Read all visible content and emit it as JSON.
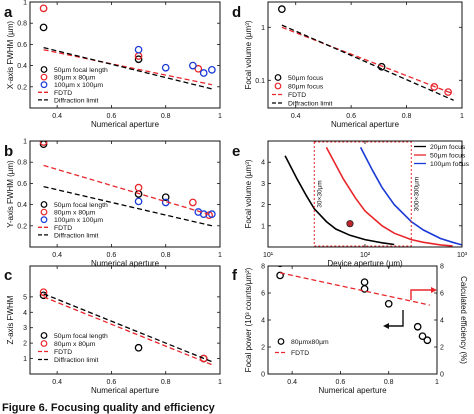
{
  "caption": "Figure 6. Focusing quality and efficiency",
  "chart_data": [
    {
      "panel": "a",
      "type": "scatter",
      "xlabel": "Numerical aperture",
      "ylabel": "X-axis FWHM (µm)",
      "xlim": [
        0.3,
        1.0
      ],
      "ylim": [
        0.0,
        1.0
      ],
      "yscale": "linear",
      "xticks": [
        0.4,
        0.6,
        0.8,
        1.0
      ],
      "xticklabels": [
        "0.4",
        "0.6",
        "0.8",
        "1"
      ],
      "yticks": [
        0.2,
        0.4,
        0.6,
        0.8,
        1.0
      ],
      "yticklabels": [
        "0.2",
        "0.4",
        "0.6",
        "0.8",
        "1"
      ],
      "legend_position": "bottom-left",
      "series": [
        {
          "name": "50µm focal length",
          "kind": "markers",
          "color": "#000000",
          "x": [
            0.35,
            0.7
          ],
          "y": [
            0.76,
            0.46
          ]
        },
        {
          "name": "80µm x 80µm",
          "kind": "markers",
          "color": "#e8262b",
          "x": [
            0.35,
            0.7,
            0.92
          ],
          "y": [
            0.94,
            0.49,
            0.37
          ]
        },
        {
          "name": "100µm x 100µm",
          "kind": "markers",
          "color": "#1a3ad6",
          "x": [
            0.7,
            0.8,
            0.9,
            0.94,
            0.97
          ],
          "y": [
            0.55,
            0.38,
            0.4,
            0.33,
            0.36
          ]
        },
        {
          "name": "FDTD",
          "kind": "dashed-line",
          "color": "#e8262b",
          "x": [
            0.35,
            0.97
          ],
          "y": [
            0.55,
            0.22
          ]
        },
        {
          "name": "Diffraction limit",
          "kind": "dashed-line",
          "color": "#000000",
          "x": [
            0.35,
            0.97
          ],
          "y": [
            0.57,
            0.18
          ]
        }
      ]
    },
    {
      "panel": "b",
      "type": "scatter",
      "xlabel": "Numerical aperture",
      "ylabel": "Y-axis FWHM (µm)",
      "xlim": [
        0.3,
        1.0
      ],
      "ylim": [
        0.0,
        1.0
      ],
      "yscale": "linear",
      "xticks": [
        0.4,
        0.6,
        0.8,
        1.0
      ],
      "xticklabels": [
        "0.4",
        "0.6",
        "0.8",
        "1"
      ],
      "yticks": [
        0.2,
        0.4,
        0.6,
        0.8,
        1.0
      ],
      "yticklabels": [
        "0.2",
        "0.4",
        "0.6",
        "0.8",
        "1"
      ],
      "legend_position": "bottom-left",
      "series": [
        {
          "name": "50µm focal length",
          "kind": "markers",
          "color": "#000000",
          "x": [
            0.35,
            0.7,
            0.8
          ],
          "y": [
            0.97,
            0.5,
            0.47
          ]
        },
        {
          "name": "80µm x 80µm",
          "kind": "markers",
          "color": "#e8262b",
          "x": [
            0.35,
            0.7,
            0.9,
            0.96
          ],
          "y": [
            0.99,
            0.56,
            0.42,
            0.3
          ]
        },
        {
          "name": "100µm x 100µm",
          "kind": "markers",
          "color": "#1a3ad6",
          "x": [
            0.7,
            0.8,
            0.92,
            0.94,
            0.97
          ],
          "y": [
            0.43,
            0.42,
            0.33,
            0.31,
            0.31
          ]
        },
        {
          "name": "FDTD",
          "kind": "dashed-line",
          "color": "#e8262b",
          "x": [
            0.35,
            0.97
          ],
          "y": [
            0.77,
            0.3
          ]
        },
        {
          "name": "Diffraction limit",
          "kind": "dashed-line",
          "color": "#000000",
          "x": [
            0.35,
            0.97
          ],
          "y": [
            0.57,
            0.2
          ]
        }
      ]
    },
    {
      "panel": "c",
      "type": "scatter",
      "xlabel": "Numerical aperture",
      "ylabel": "Z-axis FWHM",
      "xlim": [
        0.3,
        1.0
      ],
      "ylim": [
        0.0,
        7.0
      ],
      "yscale": "linear",
      "xticks": [
        0.4,
        0.6,
        0.8,
        1.0
      ],
      "xticklabels": [
        "0.4",
        "0.6",
        "0.8",
        "1"
      ],
      "yticks": [
        1,
        2,
        3,
        4,
        5
      ],
      "yticklabels": [
        "1",
        "2",
        "3",
        "4",
        "5"
      ],
      "legend_position": "bottom-left",
      "series": [
        {
          "name": "50µm focal length",
          "kind": "markers",
          "color": "#000000",
          "x": [
            0.35,
            0.7,
            0.94
          ],
          "y": [
            5.1,
            1.7,
            1.0
          ]
        },
        {
          "name": "80µm x 80µm",
          "kind": "markers",
          "color": "#e8262b",
          "x": [
            0.35,
            0.94
          ],
          "y": [
            5.3,
            1.0
          ]
        },
        {
          "name": "FDTD",
          "kind": "dashed-line",
          "color": "#e8262b",
          "x": [
            0.35,
            0.97
          ],
          "y": [
            5.0,
            0.6
          ]
        },
        {
          "name": "Diffraction limit",
          "kind": "dashed-line",
          "color": "#000000",
          "x": [
            0.35,
            0.97
          ],
          "y": [
            5.2,
            0.8
          ]
        }
      ]
    },
    {
      "panel": "d",
      "type": "scatter",
      "xlabel": "Numerical aperture",
      "ylabel": "Focal volume (µm³)",
      "xlim": [
        0.3,
        1.0
      ],
      "ylim": [
        0.03,
        3.0
      ],
      "yscale": "log",
      "xticks": [
        0.4,
        0.6,
        0.8,
        1.0
      ],
      "xticklabels": [
        "0.4",
        "0.6",
        "0.8",
        "1"
      ],
      "yticks": [
        0.1,
        1
      ],
      "yticklabels": [
        "0.1",
        "1"
      ],
      "legend_position": "bottom-left",
      "series": [
        {
          "name": "50µm focus",
          "kind": "markers",
          "color": "#000000",
          "x": [
            0.35,
            0.71
          ],
          "y": [
            2.2,
            0.18
          ]
        },
        {
          "name": "80µm focus",
          "kind": "markers",
          "color": "#e8262b",
          "x": [
            0.9,
            0.95
          ],
          "y": [
            0.075,
            0.06
          ]
        },
        {
          "name": "FDTD",
          "kind": "dashed-line",
          "color": "#e8262b",
          "x": [
            0.35,
            0.97
          ],
          "y": [
            1.0,
            0.055
          ]
        },
        {
          "name": "Diffraction limit",
          "kind": "dashed-line",
          "color": "#000000",
          "x": [
            0.35,
            0.97
          ],
          "y": [
            1.1,
            0.042
          ]
        }
      ]
    },
    {
      "panel": "e",
      "type": "line",
      "xlabel": "Device aperture (µm)",
      "ylabel": "Focal volume (µm³)",
      "xlim": [
        10,
        1000
      ],
      "ylim": [
        0.0,
        5.0
      ],
      "xscale": "log",
      "yscale": "linear",
      "xticks": [
        10,
        100,
        1000
      ],
      "xticklabels": [
        "10¹",
        "10²",
        "10³"
      ],
      "yticks": [
        1,
        2,
        3,
        4
      ],
      "yticklabels": [
        "1",
        "2",
        "3",
        "4"
      ],
      "legend_position": "top-right",
      "series": [
        {
          "name": "20µm focus",
          "kind": "line",
          "color": "#000000",
          "x": [
            15,
            20,
            25,
            30,
            40,
            50,
            70,
            100,
            150,
            200
          ],
          "y": [
            4.3,
            3.2,
            2.4,
            1.8,
            1.2,
            0.85,
            0.55,
            0.35,
            0.2,
            0.12
          ]
        },
        {
          "name": "50µm focus",
          "kind": "line",
          "color": "#e8262b",
          "x": [
            40,
            60,
            80,
            100,
            150,
            200,
            300,
            400,
            600,
            800
          ],
          "y": [
            4.7,
            3.2,
            2.3,
            1.7,
            1.0,
            0.65,
            0.35,
            0.22,
            0.1,
            0.05
          ]
        },
        {
          "name": "100µm focus",
          "kind": "line",
          "color": "#1a3ad6",
          "x": [
            90,
            120,
            150,
            200,
            300,
            400,
            600,
            800,
            1000
          ],
          "y": [
            4.7,
            3.6,
            2.8,
            2.0,
            1.2,
            0.8,
            0.4,
            0.22,
            0.1
          ]
        },
        {
          "name": "",
          "kind": "filled-point",
          "color": "#c0262b",
          "x": [
            70
          ],
          "y": [
            1.1
          ]
        }
      ],
      "annotations": [
        {
          "text": "30×30µm",
          "x": 30
        },
        {
          "text": "300×300µm",
          "x": 300
        }
      ]
    },
    {
      "panel": "f",
      "type": "scatter",
      "xlabel": "Numerical aperture",
      "ylabel": "Focal power (10³ counts/µm²)",
      "ylabel_right": "Calculated efficiency (%)",
      "xlim": [
        0.3,
        1.0
      ],
      "ylim": [
        0,
        8
      ],
      "ylim_right": [
        0,
        8
      ],
      "yscale": "linear",
      "xticks": [
        0.4,
        0.6,
        0.8,
        1.0
      ],
      "xticklabels": [
        "0.4",
        "0.6",
        "0.8",
        "1"
      ],
      "yticks": [
        0,
        2,
        4,
        6,
        8
      ],
      "yticklabels": [
        "0",
        "2",
        "4",
        "6",
        "8"
      ],
      "yticks_right": [
        0,
        2,
        4,
        6,
        8
      ],
      "yticklabels_right": [
        "0",
        "2",
        "4",
        "6",
        "8"
      ],
      "legend_position": "bottom-left",
      "series": [
        {
          "name": "80µmx80µm",
          "kind": "markers",
          "color": "#000000",
          "x": [
            0.35,
            0.35,
            0.7,
            0.7,
            0.8,
            0.92,
            0.94,
            0.96
          ],
          "y": [
            8.2,
            7.3,
            6.8,
            6.3,
            5.2,
            3.5,
            2.8,
            2.5
          ]
        },
        {
          "name": "FDTD",
          "kind": "dashed-line",
          "color": "#e8262b",
          "axis": "right",
          "x": [
            0.35,
            0.97
          ],
          "y": [
            7.5,
            5.1
          ]
        }
      ]
    }
  ]
}
